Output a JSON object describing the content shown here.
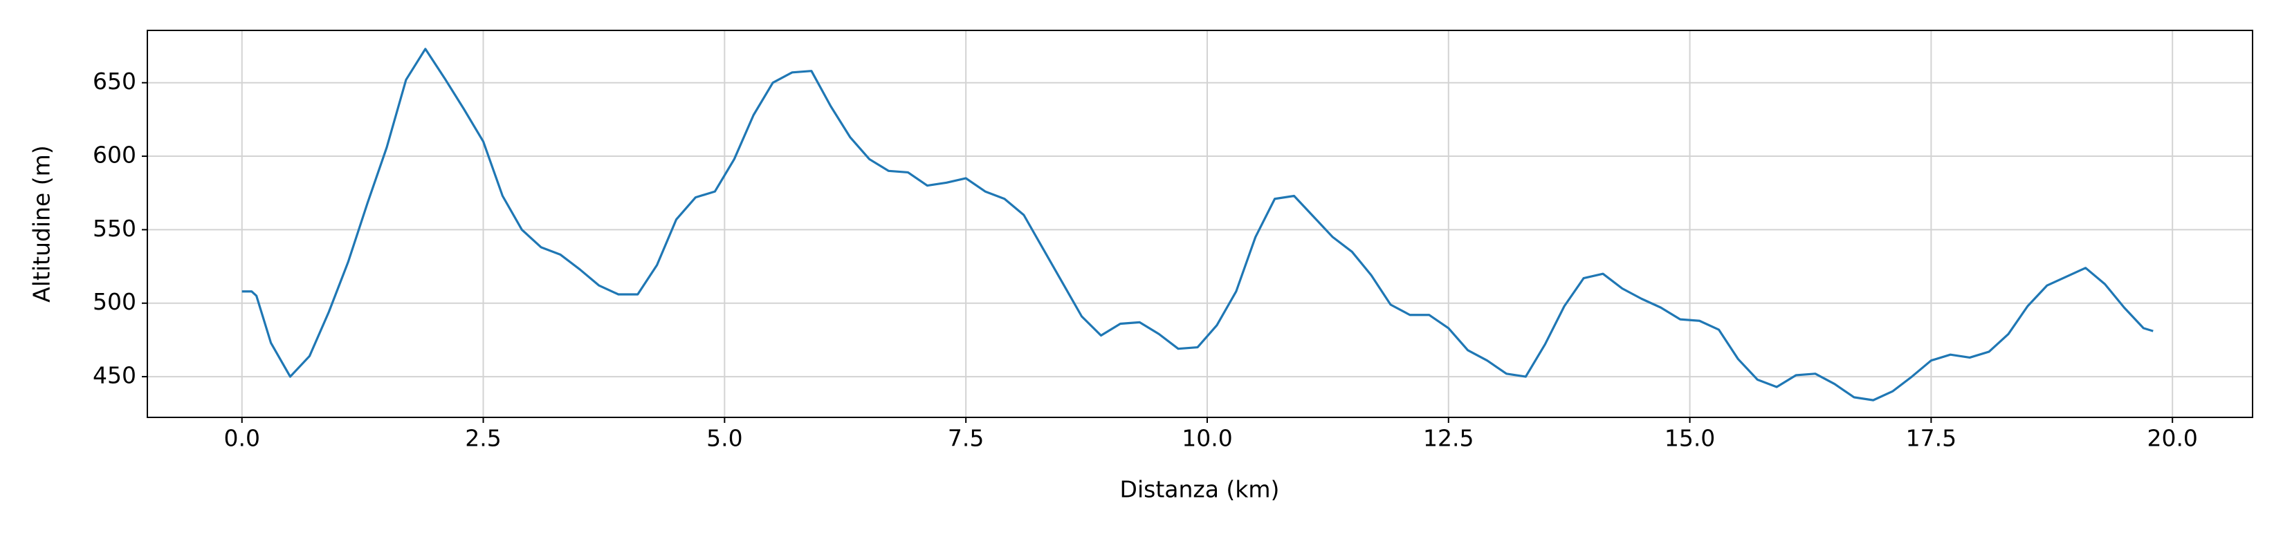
{
  "chart_data": {
    "type": "line",
    "xlabel": "Distanza (km)",
    "ylabel": "Altitudine (m)",
    "x": [
      0,
      0.1,
      0.15,
      0.3,
      0.5,
      0.7,
      0.9,
      1.1,
      1.3,
      1.5,
      1.7,
      1.9,
      2.1,
      2.3,
      2.5,
      2.7,
      2.9,
      3.1,
      3.3,
      3.5,
      3.7,
      3.9,
      4.1,
      4.3,
      4.5,
      4.7,
      4.9,
      5.1,
      5.3,
      5.5,
      5.7,
      5.9,
      6.1,
      6.3,
      6.5,
      6.7,
      6.9,
      7.1,
      7.3,
      7.5,
      7.7,
      7.9,
      8.1,
      8.3,
      8.5,
      8.7,
      8.9,
      9.1,
      9.3,
      9.5,
      9.7,
      9.9,
      10.1,
      10.3,
      10.5,
      10.7,
      10.9,
      11.1,
      11.3,
      11.5,
      11.7,
      11.9,
      12.1,
      12.3,
      12.5,
      12.7,
      12.9,
      13.1,
      13.3,
      13.5,
      13.7,
      13.9,
      14.1,
      14.3,
      14.5,
      14.7,
      14.9,
      15.1,
      15.3,
      15.5,
      15.7,
      15.9,
      16.1,
      16.3,
      16.5,
      16.7,
      16.9,
      17.1,
      17.3,
      17.5,
      17.7,
      17.9,
      18.1,
      18.3,
      18.5,
      18.7,
      18.9,
      19.1,
      19.3,
      19.5,
      19.7,
      19.8
    ],
    "series": [
      {
        "color": "#1f77b4",
        "values": [
          508,
          508,
          505,
          473,
          450,
          464,
          494,
          528,
          568,
          606,
          652,
          673,
          653,
          632,
          610,
          573,
          550,
          538,
          533,
          523,
          512,
          506,
          506,
          526,
          557,
          572,
          576,
          598,
          628,
          650,
          657,
          658,
          634,
          613,
          598,
          590,
          589,
          580,
          582,
          585,
          576,
          571,
          560,
          537,
          514,
          491,
          478,
          486,
          487,
          479,
          469,
          470,
          485,
          508,
          545,
          571,
          573,
          559,
          545,
          535,
          519,
          499,
          492,
          492,
          483,
          468,
          461,
          452,
          450,
          472,
          498,
          517,
          520,
          510,
          503,
          497,
          489,
          488,
          482,
          462,
          448,
          443,
          451,
          452,
          445,
          436,
          434,
          440,
          450,
          461,
          465,
          463,
          467,
          479,
          498,
          512,
          518,
          524,
          513,
          497,
          483,
          481
        ]
      }
    ],
    "xlim": [
      -0.98,
      20.83
    ],
    "ylim": [
      422.3,
      685.6
    ],
    "xticks": [
      {
        "value": 0,
        "label": "0.0"
      },
      2.5,
      {
        "value": 5,
        "label": "5.0"
      },
      7.5,
      {
        "value": 10,
        "label": "10.0"
      },
      12.5,
      {
        "value": 15,
        "label": "15.0"
      },
      17.5,
      {
        "value": 20,
        "label": "20.0"
      }
    ],
    "yticks": [
      450,
      500,
      550,
      600,
      650
    ],
    "grid": true
  }
}
